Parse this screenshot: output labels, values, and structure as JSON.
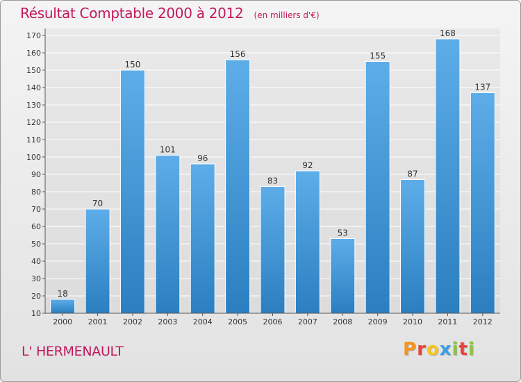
{
  "title": "Résultat Comptable 2000 à 2012",
  "subtitle": "(en milliers d'€)",
  "commune": "L' HERMENAULT",
  "logo_text": "Proxiti",
  "colors": {
    "title": "#c2185b",
    "bar_light": "#5dade8",
    "bar_dark": "#2b7fc0",
    "logo": [
      "#f7941d",
      "#e8443a",
      "#f7c51d",
      "#3aa0e0",
      "#8dc63f",
      "#e8443a",
      "#8dc63f"
    ]
  },
  "chart_data": {
    "type": "bar",
    "categories": [
      "2000",
      "2001",
      "2002",
      "2003",
      "2004",
      "2005",
      "2006",
      "2007",
      "2008",
      "2009",
      "2010",
      "2011",
      "2012"
    ],
    "values": [
      18,
      70,
      150,
      101,
      96,
      156,
      83,
      92,
      53,
      155,
      87,
      168,
      137
    ],
    "ylim": [
      10,
      170
    ],
    "yticks": [
      10,
      20,
      30,
      40,
      50,
      60,
      70,
      80,
      90,
      100,
      110,
      120,
      130,
      140,
      150,
      160,
      170
    ],
    "grid": true,
    "title": "Résultat Comptable 2000 à 2012",
    "xlabel": "",
    "ylabel": ""
  }
}
